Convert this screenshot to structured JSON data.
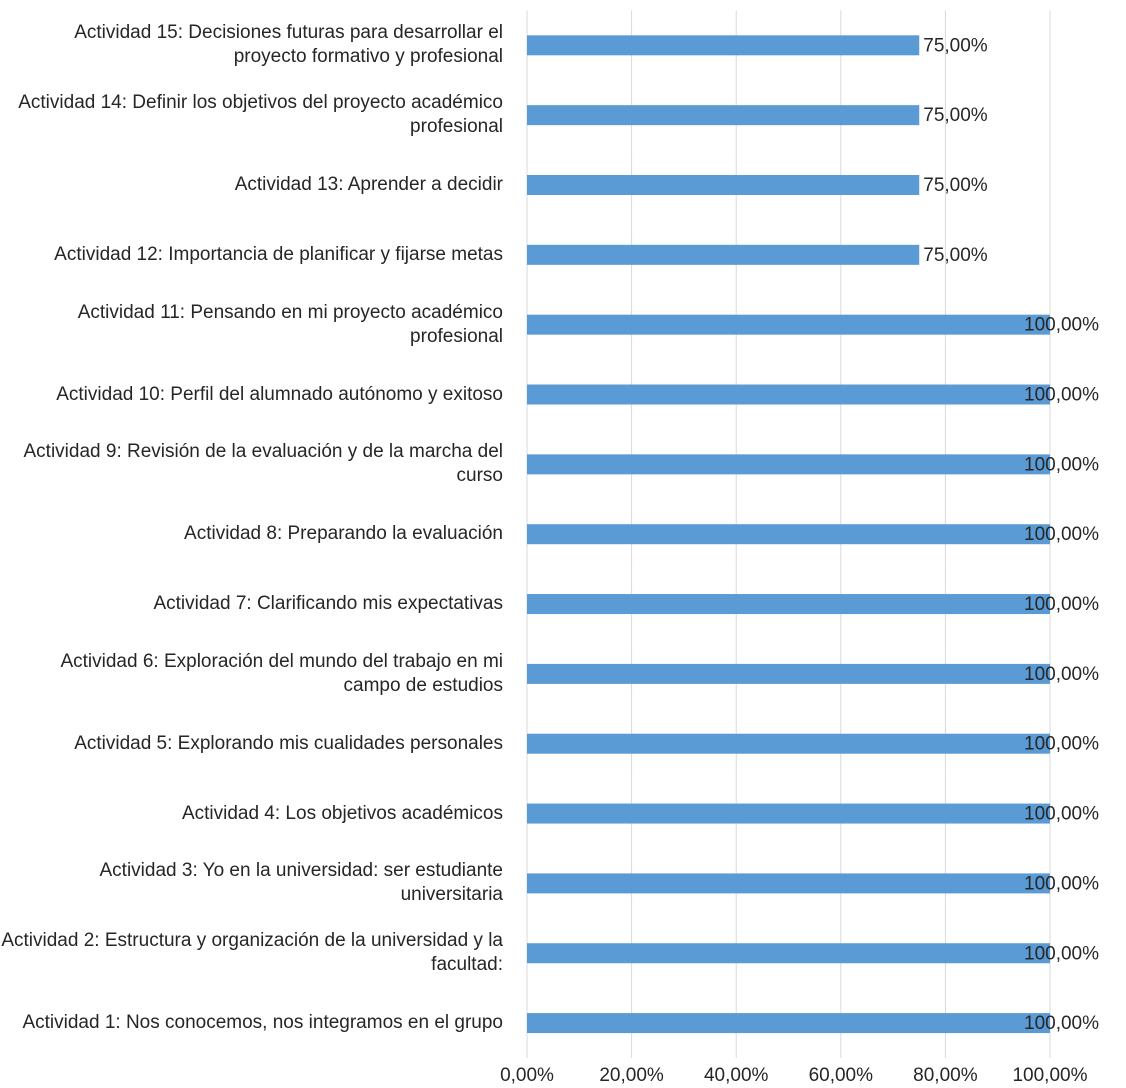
{
  "chart_data": {
    "type": "bar",
    "orientation": "horizontal",
    "categories": [
      "Actividad 15: Decisiones futuras para desarrollar el proyecto formativo y profesional",
      "Actividad 14: Definir los objetivos del proyecto académico profesional",
      "Actividad 13: Aprender a decidir",
      "Actividad 12: Importancia de planificar y fijarse metas",
      "Actividad 11: Pensando en mi proyecto académico profesional",
      "Actividad 10: Perfil del alumnado autónomo y exitoso",
      "Actividad 9: Revisión de la evaluación y de la marcha del curso",
      "Actividad 8: Preparando la evaluación",
      "Actividad 7: Clarificando mis expectativas",
      "Actividad 6: Exploración del mundo del trabajo en mi campo de estudios",
      "Actividad 5: Explorando mis cualidades personales",
      "Actividad 4: Los objetivos académicos",
      "Actividad 3: Yo en la universidad: ser estudiante universitaria",
      "Actividad 2: Estructura y organización de la universidad y la facultad:",
      "Actividad 1: Nos conocemos, nos integramos en el grupo"
    ],
    "values": [
      75,
      75,
      75,
      75,
      100,
      100,
      100,
      100,
      100,
      100,
      100,
      100,
      100,
      100,
      100
    ],
    "value_labels": [
      "75,00%",
      "75,00%",
      "75,00%",
      "75,00%",
      "100,00%",
      "100,00%",
      "100,00%",
      "100,00%",
      "100,00%",
      "100,00%",
      "100,00%",
      "100,00%",
      "100,00%",
      "100,00%",
      "100,00%"
    ],
    "color": "#5b9bd5",
    "xlim": [
      0,
      100
    ],
    "xticks": [
      {
        "value": 0,
        "label": "0,00%"
      },
      {
        "value": 20,
        "label": "20,00%"
      },
      {
        "value": 40,
        "label": "40,00%"
      },
      {
        "value": 60,
        "label": "60,00%"
      },
      {
        "value": 80,
        "label": "80,00%"
      },
      {
        "value": 100,
        "label": "100,00%"
      }
    ],
    "grid": true
  }
}
